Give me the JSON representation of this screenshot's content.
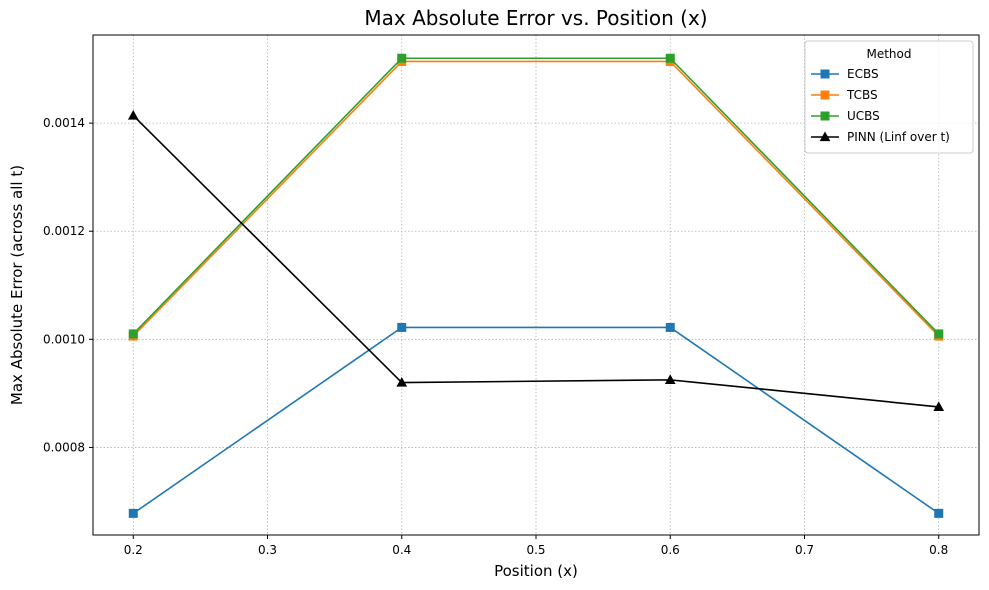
{
  "chart_data": {
    "type": "line",
    "title": "Max Absolute Error vs. Position (x)",
    "xlabel": "Position (x)",
    "ylabel": "Max Absolute Error (across all t)",
    "xlim": [
      0.17,
      0.83
    ],
    "ylim": [
      0.000638,
      0.001563
    ],
    "xticks": [
      0.2,
      0.3,
      0.4,
      0.5,
      0.6,
      0.7,
      0.8
    ],
    "xtick_labels": [
      "0.2",
      "0.3",
      "0.4",
      "0.5",
      "0.6",
      "0.7",
      "0.8"
    ],
    "yticks": [
      0.0008,
      0.001,
      0.0012,
      0.0014
    ],
    "ytick_labels": [
      "0.0008",
      "0.0010",
      "0.0012",
      "0.0014"
    ],
    "grid": true,
    "legend": {
      "title": "Method",
      "placement": "top-right"
    },
    "x": [
      0.2,
      0.4,
      0.6,
      0.8
    ],
    "series": [
      {
        "name": "ECBS",
        "color": "#1f77b4",
        "marker": "square",
        "values": [
          0.000678,
          0.001022,
          0.001022,
          0.000678
        ]
      },
      {
        "name": "TCBS",
        "color": "#ff7f0e",
        "marker": "square",
        "values": [
          0.001006,
          0.001514,
          0.001514,
          0.001006
        ]
      },
      {
        "name": "UCBS",
        "color": "#2ca02c",
        "marker": "square",
        "values": [
          0.00101,
          0.00152,
          0.00152,
          0.00101
        ]
      },
      {
        "name": "PINN (Linf over t)",
        "color": "#000000",
        "marker": "triangle",
        "values": [
          0.001414,
          0.00092,
          0.000925,
          0.000875
        ]
      }
    ]
  }
}
